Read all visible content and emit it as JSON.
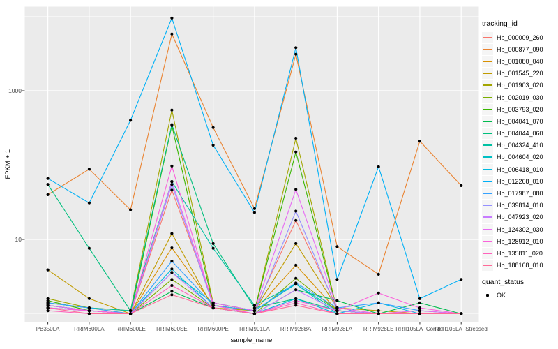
{
  "figure": {
    "background": "#FFFFFF",
    "panel_background": "#EBEBEB",
    "gridline_color": "#FFFFFF",
    "tick_color": "#333333",
    "tick_label_color": "#4D4D4D",
    "point_color": "#000000"
  },
  "chart_data": {
    "type": "line",
    "title": "",
    "xlabel": "sample_name",
    "ylabel": "FPKM + 1",
    "y_scale": "log10",
    "legend_position": "right",
    "grid": true,
    "y_ticks": [
      {
        "label": "1000",
        "value": 1000
      },
      {
        "label": "10",
        "value": 10
      }
    ],
    "y_minor_gridlines": [
      1,
      100,
      10000
    ],
    "ylim": [
      1,
      12000
    ],
    "categories": [
      "PB350LA",
      "RRIM600LA",
      "RRIM600LE",
      "RRIM600SE",
      "RRIM600PE",
      "RRIM901LA",
      "RRIM928BA",
      "RRIM928LA",
      "RRIM928LE",
      "RRII105LA_Control",
      "RRII105LA_Stressed"
    ],
    "legend_title": "tracking_id",
    "series": [
      {
        "name": "Hb_000009_260",
        "color": "#F8766D",
        "values": [
          1.3,
          1.1,
          1.0,
          46,
          1.4,
          1.1,
          18,
          1.2,
          1.0,
          1.1,
          1.0
        ]
      },
      {
        "name": "Hb_000877_090",
        "color": "#EA8331",
        "values": [
          40,
          88,
          25,
          5800,
          320,
          26,
          3100,
          8,
          3.4,
          210,
          53
        ]
      },
      {
        "name": "Hb_001080_040",
        "color": "#D89000",
        "values": [
          1.4,
          1.2,
          1.0,
          7.7,
          1.3,
          1.1,
          4.5,
          1.1,
          1.0,
          1.0,
          1.0
        ]
      },
      {
        "name": "Hb_001545_220",
        "color": "#C09B00",
        "values": [
          3.9,
          1.6,
          1.0,
          12,
          1.2,
          1.1,
          8.8,
          1.2,
          1.1,
          1.0,
          1.0
        ]
      },
      {
        "name": "Hb_001903_020",
        "color": "#A3A500",
        "values": [
          1.6,
          1.2,
          1.1,
          550,
          1.4,
          1.1,
          230,
          1.1,
          1.0,
          1.0,
          1.0
        ]
      },
      {
        "name": "Hb_002019_030",
        "color": "#7CAE00",
        "values": [
          1.2,
          1.1,
          1.0,
          2.9,
          1.2,
          1.0,
          3.0,
          1.1,
          1.0,
          1.0,
          1.0
        ]
      },
      {
        "name": "Hb_003793_020",
        "color": "#39B600",
        "values": [
          1.5,
          1.1,
          1.0,
          340,
          1.3,
          1.1,
          150,
          1.1,
          1.0,
          1.0,
          1.0
        ]
      },
      {
        "name": "Hb_004041_070",
        "color": "#00BB4E",
        "values": [
          1.3,
          1.1,
          1.0,
          2.0,
          1.2,
          1.0,
          2.1,
          1.5,
          1.0,
          1.4,
          1.0
        ]
      },
      {
        "name": "Hb_004044_060",
        "color": "#00BF7D",
        "values": [
          55,
          7.6,
          1.1,
          350,
          8.8,
          1.2,
          1.6,
          1.1,
          1.0,
          1.0,
          1.0
        ]
      },
      {
        "name": "Hb_004324_410",
        "color": "#00C1A3",
        "values": [
          1.4,
          1.2,
          1.1,
          60,
          7.6,
          1.3,
          2.5,
          1.1,
          1.0,
          1.0,
          1.0
        ]
      },
      {
        "name": "Hb_004604_020",
        "color": "#00BFC4",
        "values": [
          1.2,
          1.1,
          1.0,
          3.6,
          1.4,
          1.1,
          2.5,
          1.0,
          1.0,
          1.0,
          1.0
        ]
      },
      {
        "name": "Hb_006418_010",
        "color": "#00BAE0",
        "values": [
          1.3,
          1.1,
          1.0,
          4.0,
          1.2,
          1.0,
          1.6,
          1.0,
          1.4,
          1.0,
          1.0
        ]
      },
      {
        "name": "Hb_012268_010",
        "color": "#00B0F6",
        "values": [
          66,
          31,
          400,
          9500,
          185,
          23,
          3800,
          2.9,
          95,
          1.6,
          2.9
        ]
      },
      {
        "name": "Hb_017987_080",
        "color": "#35A2FF",
        "values": [
          1.4,
          1.2,
          1.0,
          5.1,
          1.3,
          1.1,
          2.6,
          1.2,
          1.4,
          1.1,
          1.0
        ]
      },
      {
        "name": "Hb_039814_010",
        "color": "#9590FF",
        "values": [
          1.2,
          1.1,
          1.0,
          55,
          1.3,
          1.0,
          24,
          1.1,
          1.0,
          1.0,
          1.0
        ]
      },
      {
        "name": "Hb_047923_020",
        "color": "#C77CFF",
        "values": [
          1.2,
          1.1,
          1.0,
          3.6,
          1.2,
          1.0,
          2.1,
          1.1,
          1.0,
          1.0,
          1.0
        ]
      },
      {
        "name": "Hb_124302_030",
        "color": "#E76BF3",
        "values": [
          1.3,
          1.1,
          1.0,
          60,
          1.4,
          1.1,
          47,
          1.2,
          1.0,
          1.1,
          1.0
        ]
      },
      {
        "name": "Hb_128912_010",
        "color": "#FA62DB",
        "values": [
          1.2,
          1.1,
          1.0,
          97,
          1.3,
          1.0,
          1.5,
          1.1,
          1.9,
          1.2,
          1.0
        ]
      },
      {
        "name": "Hb_135811_020",
        "color": "#FF62BC",
        "values": [
          1.1,
          1.0,
          1.0,
          2.4,
          1.2,
          1.0,
          1.4,
          1.0,
          1.0,
          1.0,
          1.0
        ]
      },
      {
        "name": "Hb_188168_010",
        "color": "#FF6A98",
        "values": [
          1.2,
          1.0,
          1.0,
          1.8,
          1.2,
          1.0,
          1.3,
          1.0,
          1.0,
          1.0,
          1.0
        ]
      }
    ],
    "quant_legend": {
      "title": "quant_status",
      "items": [
        {
          "label": "OK",
          "marker_color": "#000000"
        }
      ]
    }
  }
}
